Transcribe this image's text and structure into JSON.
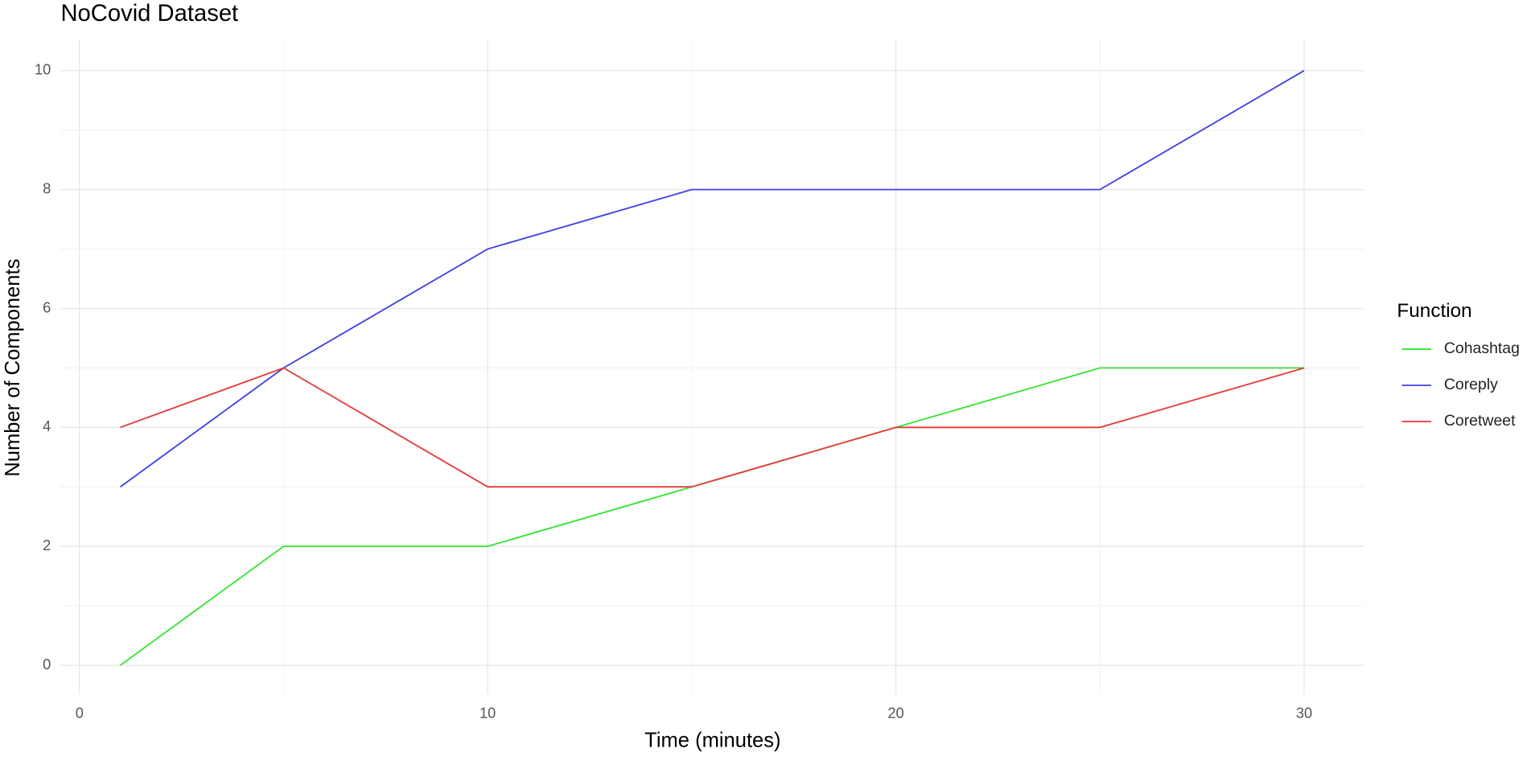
{
  "chart_data": {
    "type": "line",
    "title": "NoCovid Dataset",
    "x_label": "Time (minutes)",
    "y_label": "Number of Components",
    "x": [
      1,
      5,
      10,
      15,
      20,
      25,
      30
    ],
    "series": [
      {
        "name": "Cohashtag",
        "color": "#33e633",
        "values": [
          0,
          2,
          2,
          3,
          4,
          5,
          5
        ]
      },
      {
        "name": "Coreply",
        "color": "#4040e6",
        "values": [
          3,
          5,
          7,
          8,
          8,
          8,
          10
        ]
      },
      {
        "name": "Coretweet",
        "color": "#e63a3a",
        "values": [
          4,
          5,
          3,
          3,
          4,
          4,
          5
        ]
      }
    ],
    "legend_title": "Function",
    "xlim": [
      -0.46,
      31.46
    ],
    "xticks": [
      0,
      10,
      20,
      30
    ],
    "xminor": [
      5,
      15,
      25
    ],
    "ylim": [
      -0.49,
      10.53
    ],
    "yticks": [
      0,
      2,
      4,
      6,
      8,
      10
    ],
    "yminor": [
      1,
      3,
      5,
      7,
      9
    ],
    "grid": true,
    "legend": "right"
  }
}
